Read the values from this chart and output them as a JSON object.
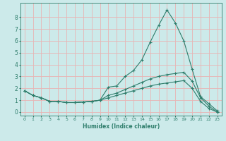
{
  "xlabel": "Humidex (Indice chaleur)",
  "x": [
    0,
    1,
    2,
    3,
    4,
    5,
    6,
    7,
    8,
    9,
    10,
    11,
    12,
    13,
    14,
    15,
    16,
    17,
    18,
    19,
    20,
    21,
    22,
    23
  ],
  "line1": [
    1.8,
    1.4,
    1.2,
    0.9,
    0.9,
    0.8,
    0.8,
    0.85,
    0.9,
    1.0,
    2.1,
    2.2,
    3.0,
    3.5,
    4.4,
    5.9,
    7.3,
    8.6,
    7.5,
    6.0,
    3.6,
    1.3,
    0.7,
    0.1
  ],
  "line2": [
    1.8,
    1.4,
    1.2,
    0.9,
    0.9,
    0.8,
    0.8,
    0.85,
    0.9,
    1.0,
    1.4,
    1.6,
    1.9,
    2.2,
    2.5,
    2.8,
    3.0,
    3.15,
    3.25,
    3.35,
    2.6,
    1.2,
    0.5,
    0.0
  ],
  "line3": [
    1.8,
    1.4,
    1.2,
    0.9,
    0.9,
    0.8,
    0.8,
    0.85,
    0.9,
    1.0,
    1.2,
    1.4,
    1.6,
    1.8,
    2.0,
    2.2,
    2.35,
    2.45,
    2.55,
    2.65,
    2.0,
    0.9,
    0.3,
    0.0
  ],
  "line_color": "#2e7d6b",
  "bg_color": "#cceaea",
  "grid_color": "#e8b4b4",
  "ylim": [
    -0.3,
    9.2
  ],
  "xlim": [
    -0.5,
    23.5
  ],
  "yticks": [
    0,
    1,
    2,
    3,
    4,
    5,
    6,
    7,
    8
  ],
  "xticks": [
    0,
    1,
    2,
    3,
    4,
    5,
    6,
    7,
    8,
    9,
    10,
    11,
    12,
    13,
    14,
    15,
    16,
    17,
    18,
    19,
    20,
    21,
    22,
    23
  ]
}
